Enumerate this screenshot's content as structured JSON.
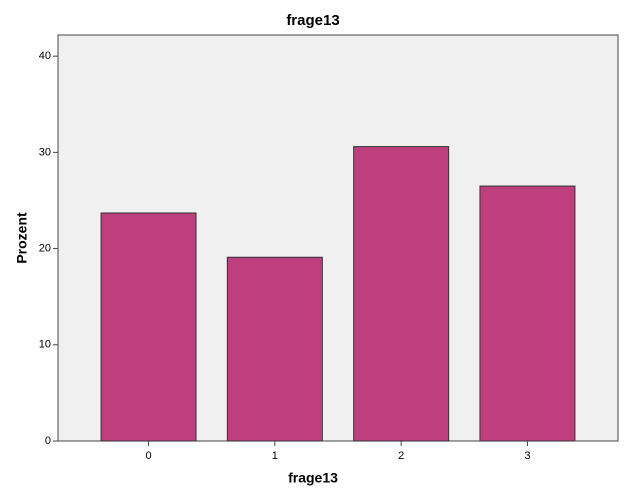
{
  "chart_data": {
    "type": "bar",
    "title": "frage13",
    "x_label": "frage13",
    "y_label": "Prozent",
    "categories": [
      "0",
      "1",
      "2",
      "3"
    ],
    "values": [
      23.7,
      19.1,
      30.6,
      26.5
    ],
    "color": "#be3f7e",
    "ylim": [
      0,
      42.2
    ],
    "yticks": [
      0,
      10,
      20,
      30,
      40
    ],
    "grid": false
  }
}
